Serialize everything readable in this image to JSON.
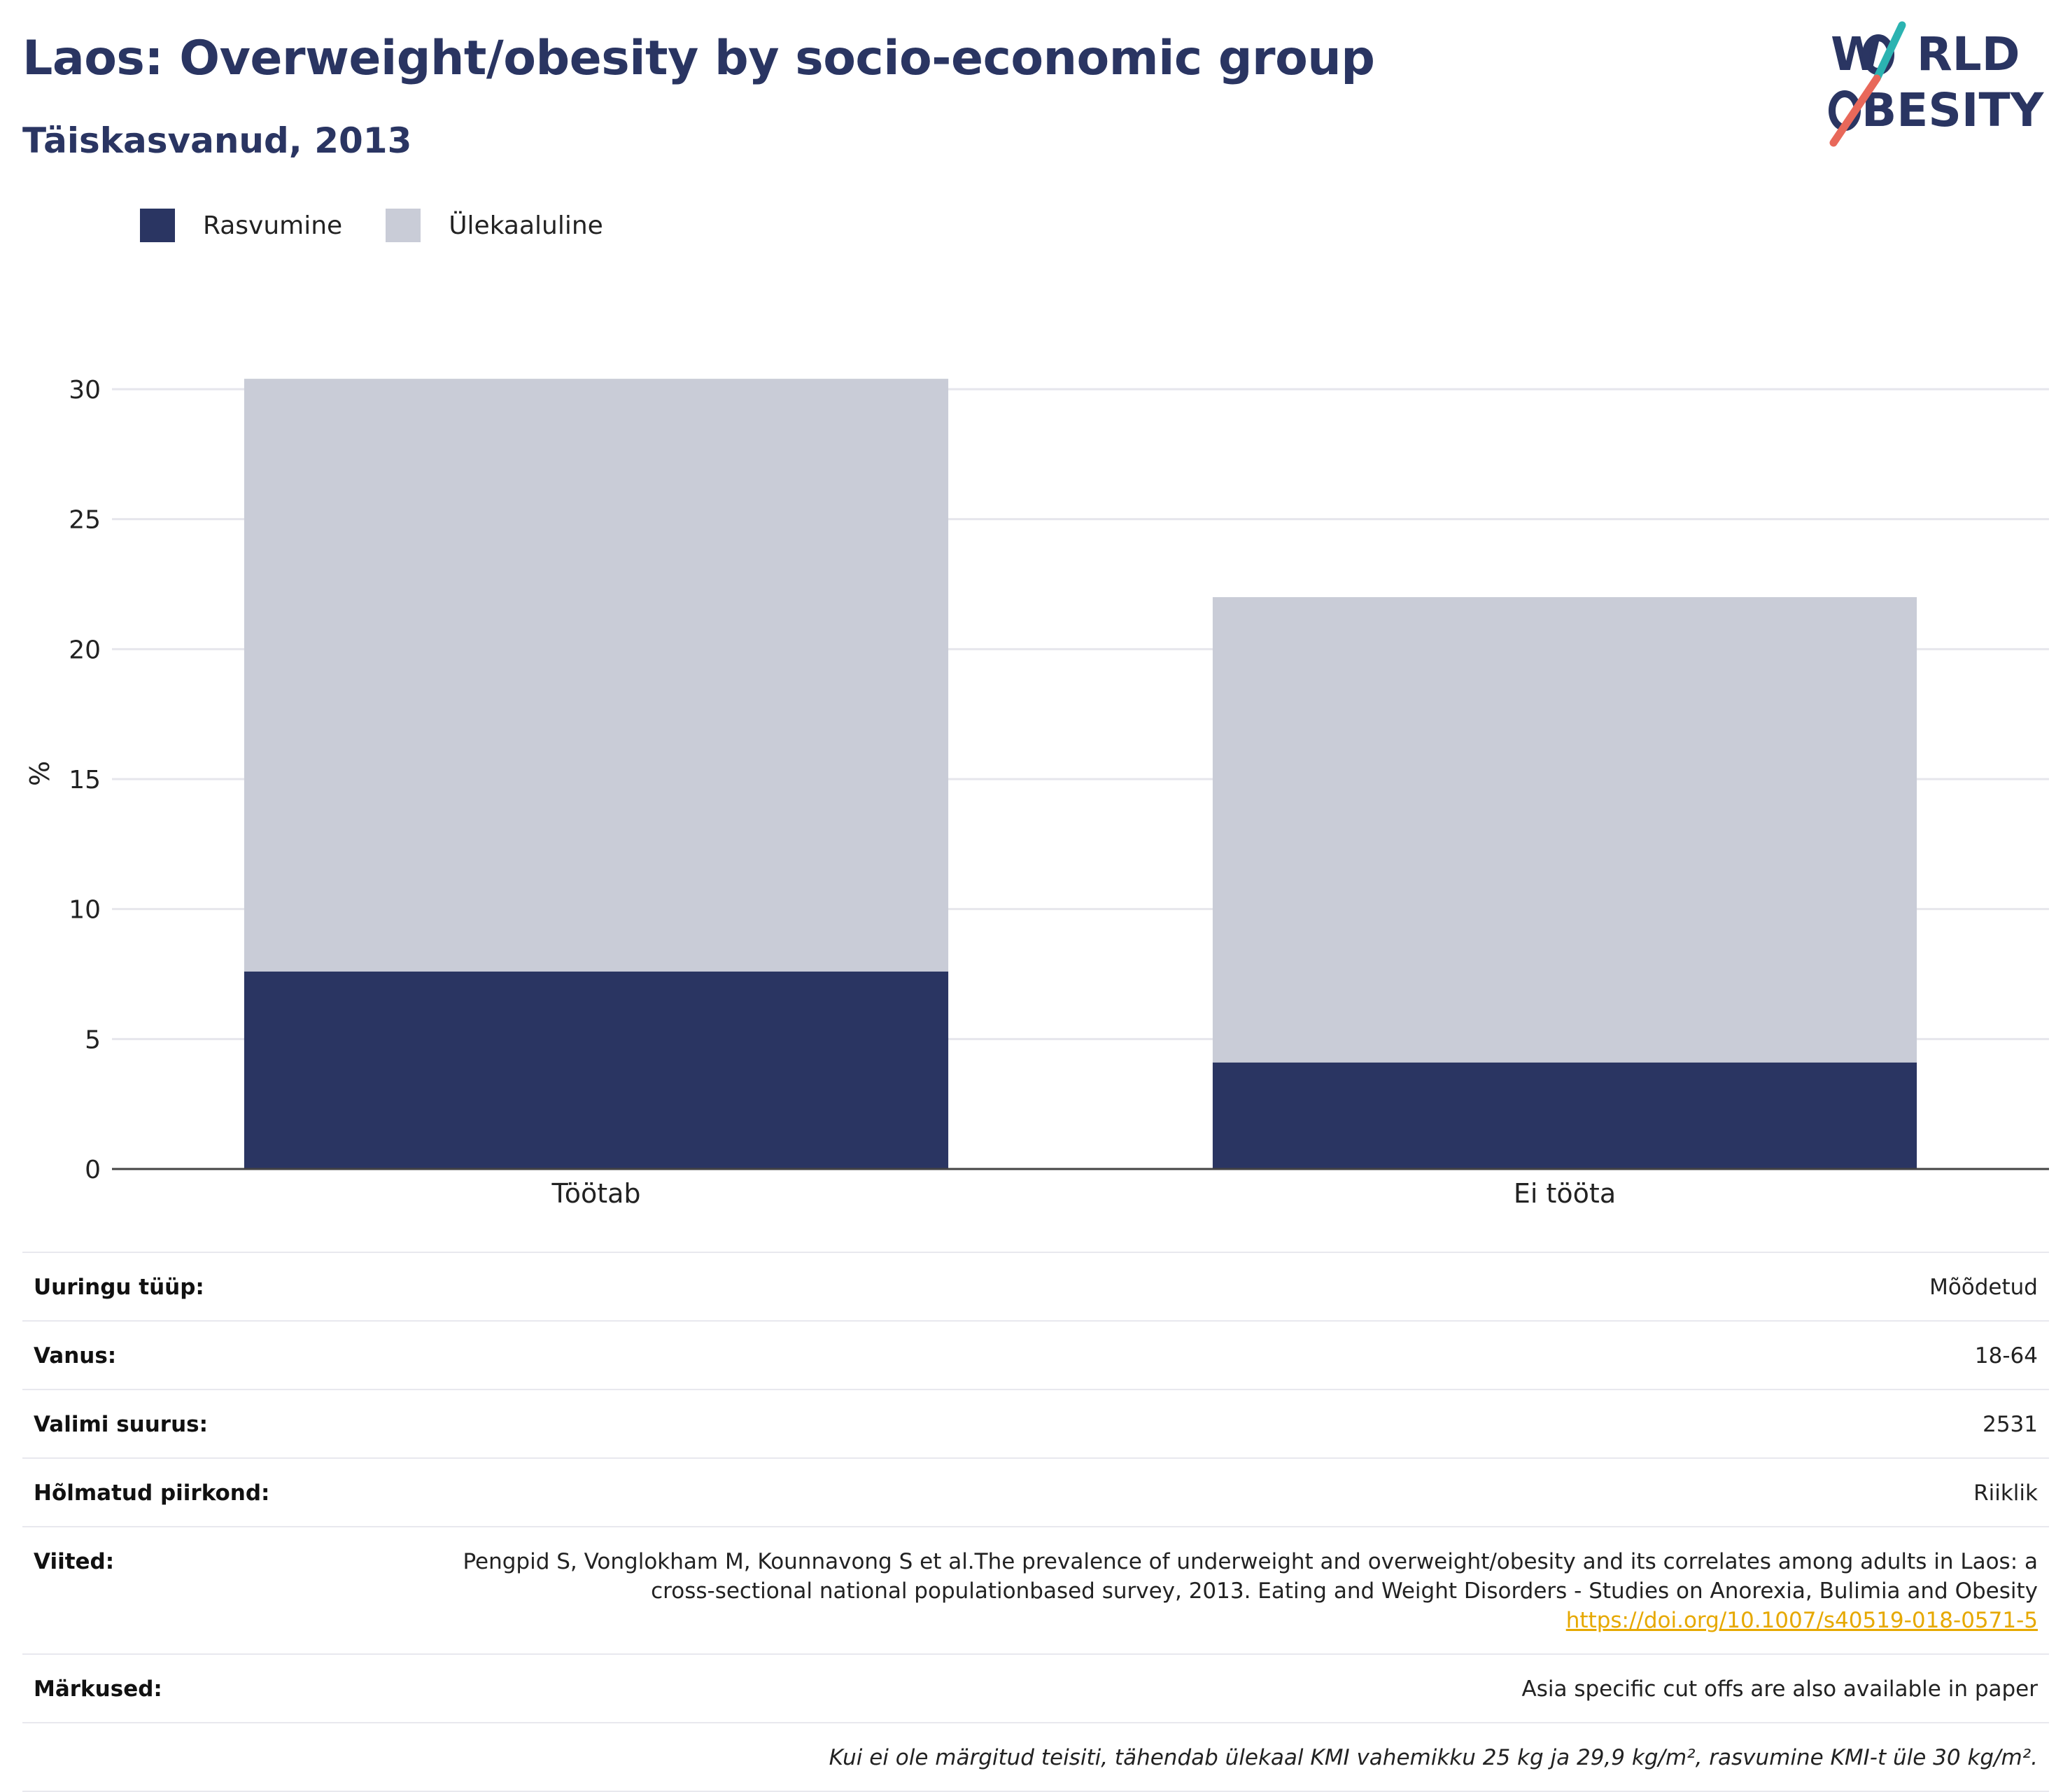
{
  "header": {
    "title": "Laos: Overweight/obesity by socio-economic group",
    "subtitle": "Täiskasvanud, 2013"
  },
  "logo": {
    "line1_a": "W",
    "line1_b": "RLD",
    "line2_b": "BESITY",
    "colors": {
      "text": "#2a3562",
      "slash_teal": "#2bb3b1",
      "slash_coral": "#e8685a"
    }
  },
  "legend": {
    "items": [
      {
        "label": "Rasvumine",
        "color": "#2a3562"
      },
      {
        "label": "Ülekaaluline",
        "color": "#c9ccd7"
      }
    ]
  },
  "chart_data": {
    "type": "bar",
    "stacked": true,
    "categories": [
      "Töötab",
      "Ei tööta"
    ],
    "series": [
      {
        "name": "Rasvumine",
        "values": [
          7.6,
          4.1
        ],
        "color": "#2a3562"
      },
      {
        "name": "Ülekaaluline",
        "values": [
          22.8,
          17.9
        ],
        "color": "#c9ccd7"
      }
    ],
    "ylabel": "%",
    "ylim": [
      0,
      30
    ],
    "yticks": [
      0,
      5,
      10,
      15,
      20,
      25,
      30
    ],
    "grid": true,
    "legend_position": "top-left"
  },
  "info": {
    "rows": [
      {
        "label": "Uuringu tüüp:",
        "value": "Mõõdetud"
      },
      {
        "label": "Vanus:",
        "value": "18-64"
      },
      {
        "label": "Valimi suurus:",
        "value": "2531"
      },
      {
        "label": "Hõlmatud piirkond:",
        "value": "Riiklik"
      }
    ],
    "references": {
      "label": "Viited:",
      "text": "Pengpid S, Vonglokham M, Kounnavong S et al.The prevalence of underweight and overweight/obesity and its correlates among adults in Laos: a cross-sectional national populationbased survey, 2013. Eating and Weight Disorders - Studies on Anorexia, Bulimia and Obesity",
      "link": "https://doi.org/10.1007/s40519-018-0571-5"
    },
    "notes": {
      "label": "Märkused:",
      "value": "Asia specific cut offs are also available in paper"
    },
    "footnote": "Kui ei ole märgitud teisiti, tähendab ülekaal KMI vahemikku 25 kg ja 29,9 kg/m², rasvumine KMI-t üle 30 kg/m²."
  }
}
